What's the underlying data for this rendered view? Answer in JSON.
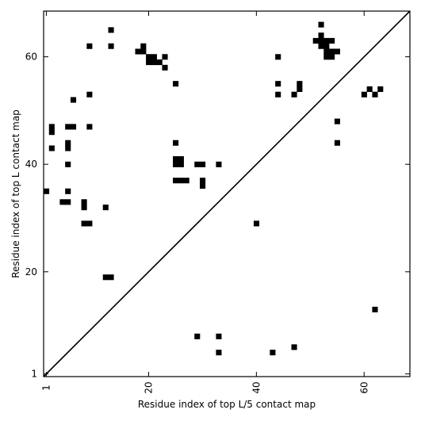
{
  "chart_data": {
    "type": "heatmap",
    "xlabel": "Residue index of top L/5 contact map",
    "ylabel": "Residue index of top L contact map",
    "xlim": [
      0.5,
      68.5
    ],
    "ylim": [
      0.5,
      68.5
    ],
    "x_ticks": [
      {
        "value": 1,
        "label": "1"
      },
      {
        "value": 20,
        "label": "20"
      },
      {
        "value": 40,
        "label": "40"
      },
      {
        "value": 60,
        "label": "60"
      }
    ],
    "y_ticks": [
      {
        "value": 1,
        "label": "1"
      },
      {
        "value": 20,
        "label": "20"
      },
      {
        "value": 40,
        "label": "40"
      },
      {
        "value": 60,
        "label": "60"
      }
    ],
    "diagonal": true,
    "grid": false,
    "cell_color": "#000000",
    "upper_cells": [
      [
        1,
        35
      ],
      [
        2,
        43
      ],
      [
        2,
        46
      ],
      [
        2,
        47
      ],
      [
        4,
        33
      ],
      [
        5,
        33
      ],
      [
        5,
        35
      ],
      [
        5,
        40
      ],
      [
        5,
        43
      ],
      [
        5,
        44
      ],
      [
        5,
        47
      ],
      [
        6,
        47
      ],
      [
        6,
        52
      ],
      [
        8,
        29
      ],
      [
        8,
        32
      ],
      [
        8,
        33
      ],
      [
        9,
        29
      ],
      [
        9,
        47
      ],
      [
        9,
        53
      ],
      [
        9,
        62
      ],
      [
        12,
        19
      ],
      [
        12,
        32
      ],
      [
        13,
        19
      ],
      [
        13,
        62
      ],
      [
        13,
        65
      ],
      [
        18,
        61
      ],
      [
        19,
        61
      ],
      [
        19,
        62
      ],
      [
        20,
        59
      ],
      [
        20,
        60
      ],
      [
        21,
        59
      ],
      [
        21,
        60
      ],
      [
        22,
        59
      ],
      [
        23,
        58
      ],
      [
        23,
        60
      ],
      [
        25,
        37
      ],
      [
        25,
        40
      ],
      [
        25,
        41
      ],
      [
        25,
        44
      ],
      [
        25,
        55
      ],
      [
        26,
        37
      ],
      [
        26,
        40
      ],
      [
        26,
        41
      ],
      [
        27,
        37
      ],
      [
        29,
        40
      ],
      [
        30,
        36
      ],
      [
        30,
        37
      ],
      [
        30,
        40
      ],
      [
        33,
        40
      ],
      [
        40,
        29
      ],
      [
        44,
        53
      ],
      [
        44,
        55
      ],
      [
        44,
        60
      ],
      [
        47,
        53
      ],
      [
        48,
        54
      ],
      [
        48,
        55
      ],
      [
        51,
        63
      ],
      [
        52,
        62
      ],
      [
        52,
        63
      ],
      [
        52,
        64
      ],
      [
        52,
        66
      ],
      [
        53,
        60
      ],
      [
        53,
        61
      ],
      [
        53,
        62
      ],
      [
        53,
        63
      ],
      [
        54,
        60
      ],
      [
        54,
        61
      ],
      [
        54,
        63
      ],
      [
        55,
        44
      ],
      [
        55,
        48
      ],
      [
        55,
        61
      ],
      [
        60,
        53
      ],
      [
        61,
        54
      ],
      [
        62,
        53
      ],
      [
        63,
        54
      ]
    ],
    "lower_cells": [
      [
        29,
        8
      ],
      [
        33,
        5
      ],
      [
        33,
        8
      ],
      [
        43,
        5
      ],
      [
        47,
        6
      ],
      [
        62,
        13
      ]
    ]
  }
}
